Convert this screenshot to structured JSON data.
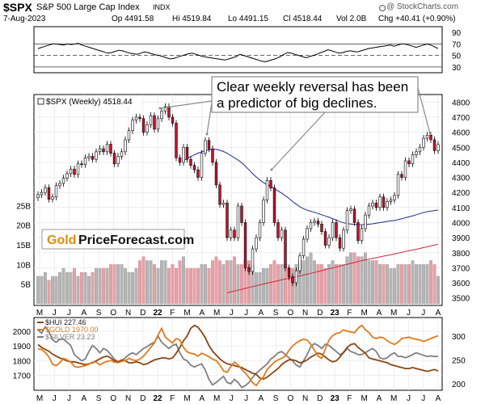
{
  "header": {
    "ticker": "$SPX",
    "name": "S&P 500 Large Cap Index",
    "exchange": "INDX",
    "date": "7-Aug-2023",
    "op": "Op 4491.58",
    "hi": "Hi 4519.84",
    "lo": "Lo 4491.15",
    "cl": "Cl 4518.44",
    "vol": "Vol 2.0B",
    "chg": "Chg +40.41 (+0.90%)",
    "watermark": "@ StockCharts.com"
  },
  "colors": {
    "up": "#ffffff",
    "down": "#c8102e",
    "ma_fast": "#1f2a8c",
    "ma_slow": "#d0263a",
    "hui": "#8b4513",
    "gold": "#e07a1a",
    "silver": "#7f7f7f",
    "volume_up": "#b5b5b5",
    "volume_down": "#e6a1a8"
  },
  "chart_data": [
    {
      "type": "line",
      "panel": "rsi",
      "y_ticks": [
        "90",
        "70",
        "50",
        "30"
      ],
      "ylim": [
        20,
        100
      ],
      "levels": [
        70,
        50,
        30
      ],
      "values": [
        62,
        64,
        66,
        68,
        70,
        70,
        69,
        68,
        70,
        69,
        70,
        71,
        68,
        66,
        64,
        62,
        60,
        58,
        56,
        54,
        55,
        57,
        59,
        58,
        56,
        54,
        53,
        52,
        54,
        56,
        55,
        53,
        51,
        50,
        48,
        46,
        44,
        45,
        47,
        49,
        51,
        53,
        54,
        52,
        50,
        48,
        47,
        46,
        45,
        44,
        43,
        42,
        44,
        46,
        48,
        52,
        50,
        48,
        46,
        44,
        42,
        40,
        39,
        41,
        43,
        45,
        48,
        52,
        55,
        54,
        52,
        50,
        48,
        46,
        48,
        50,
        52,
        55,
        57,
        60,
        58,
        56,
        54,
        55,
        57,
        58,
        57,
        56,
        58,
        60,
        62,
        63,
        64,
        65,
        66,
        67,
        68,
        66,
        68,
        70,
        70,
        68,
        66,
        64,
        66,
        68,
        70,
        68,
        65,
        62
      ]
    },
    {
      "type": "candlestick",
      "panel": "price",
      "title": "$SPX (Weekly) 4518.44",
      "ylim": [
        3450,
        4850
      ],
      "y_ticks": [
        "4800",
        "4700",
        "4600",
        "4500",
        "4400",
        "4300",
        "4200",
        "4100",
        "4000",
        "3900",
        "3800",
        "3700",
        "3600",
        "3500"
      ],
      "x_ticks": [
        "M",
        "J",
        "J",
        "A",
        "S",
        "O",
        "N",
        "D",
        "22",
        "F",
        "M",
        "A",
        "M",
        "J",
        "J",
        "A",
        "S",
        "O",
        "N",
        "D",
        "23",
        "F",
        "M",
        "A",
        "M",
        "J",
        "J",
        "A"
      ],
      "close": [
        4185,
        4200,
        4232,
        4155,
        4170,
        4245,
        4260,
        4295,
        4325,
        4355,
        4320,
        4390,
        4385,
        4430,
        4440,
        4420,
        4470,
        4490,
        4470,
        4520,
        4460,
        4390,
        4440,
        4470,
        4550,
        4610,
        4680,
        4700,
        4690,
        4600,
        4650,
        4710,
        4620,
        4690,
        4740,
        4770,
        4700,
        4660,
        4430,
        4400,
        4500,
        4420,
        4380,
        4350,
        4300,
        4460,
        4545,
        4490,
        4400,
        4250,
        4120,
        4130,
        3900,
        3950,
        3900,
        4110,
        4000,
        3700,
        3675,
        3825,
        3900,
        4000,
        4150,
        4280,
        4230,
        4000,
        3900,
        3950,
        3700,
        3640,
        3600,
        3680,
        3780,
        3890,
        3960,
        4000,
        4010,
        3990,
        3940,
        3850,
        3900,
        4000,
        3900,
        3830,
        3950,
        4080,
        4090,
        4000,
        3880,
        3960,
        4050,
        4110,
        4130,
        4100,
        4170,
        4100,
        4140,
        4150,
        4180,
        4320,
        4300,
        4410,
        4390,
        4450,
        4470,
        4500,
        4560,
        4580,
        4550,
        4478,
        4518
      ],
      "ma_fast": [
        null,
        null,
        null,
        null,
        null,
        null,
        null,
        null,
        null,
        null,
        null,
        null,
        null,
        null,
        null,
        null,
        null,
        null,
        null,
        null,
        null,
        null,
        null,
        null,
        null,
        null,
        null,
        null,
        null,
        null,
        null,
        null,
        null,
        null,
        null,
        null,
        null,
        null,
        null,
        null,
        4410,
        4425,
        4438,
        4450,
        4461,
        4470,
        4478,
        4483,
        4487,
        4486,
        4480,
        4472,
        4460,
        4445,
        4430,
        4415,
        4398,
        4375,
        4350,
        4325,
        4303,
        4283,
        4266,
        4252,
        4240,
        4225,
        4210,
        4195,
        4178,
        4160,
        4140,
        4122,
        4105,
        4092,
        4082,
        4075,
        4068,
        4060,
        4052,
        4044,
        4035,
        4026,
        4016,
        4006,
        3999,
        3994,
        3990,
        3988,
        3986,
        3985,
        3987,
        3989,
        3992,
        3996,
        4000,
        4004,
        4008,
        4011,
        4014,
        4020,
        4025,
        4032,
        4038,
        4045,
        4052,
        4060,
        4066,
        4072,
        4076,
        4080,
        4083
      ],
      "ma_slow": [
        null,
        null,
        null,
        null,
        null,
        null,
        null,
        null,
        null,
        null,
        null,
        null,
        null,
        null,
        null,
        null,
        null,
        null,
        null,
        null,
        null,
        null,
        null,
        null,
        null,
        null,
        null,
        null,
        null,
        null,
        null,
        null,
        null,
        null,
        null,
        null,
        null,
        null,
        null,
        null,
        null,
        null,
        null,
        null,
        null,
        null,
        null,
        null,
        null,
        null,
        null,
        null,
        3535,
        3540,
        3545,
        3551,
        3557,
        3563,
        3569,
        3575,
        3580,
        3586,
        3592,
        3598,
        3603,
        3609,
        3614,
        3620,
        3625,
        3630,
        3635,
        3640,
        3646,
        3651,
        3657,
        3663,
        3669,
        3675,
        3681,
        3687,
        3693,
        3699,
        3705,
        3711,
        3717,
        3723,
        3729,
        3735,
        3741,
        3747,
        3752,
        3757,
        3762,
        3767,
        3772,
        3777,
        3782,
        3787,
        3792,
        3797,
        3802,
        3808,
        3813,
        3818,
        3823,
        3828,
        3834,
        3839,
        3845,
        3850,
        3856
      ],
      "volume": [
        7,
        7,
        8,
        6,
        7,
        7,
        8,
        9,
        8,
        8,
        9,
        7,
        8,
        8,
        7,
        8,
        9,
        9,
        9,
        9,
        10,
        10,
        10,
        10,
        9,
        8,
        8,
        9,
        11,
        12,
        11,
        11,
        10,
        9,
        11,
        11,
        9,
        10,
        9,
        11,
        12,
        9,
        9,
        9,
        9,
        10,
        10,
        9,
        11,
        12,
        11,
        10,
        11,
        11,
        12,
        10,
        10,
        11,
        11,
        10,
        8,
        8,
        9,
        9,
        10,
        11,
        10,
        10,
        10,
        9,
        9,
        10,
        11,
        11,
        12,
        13,
        11,
        10,
        10,
        9,
        10,
        11,
        10,
        10,
        10,
        12,
        13,
        13,
        12,
        12,
        13,
        11,
        11,
        11,
        10,
        10,
        10,
        9,
        9,
        10,
        10,
        10,
        10,
        11,
        10,
        10,
        10,
        10,
        11,
        10,
        7
      ],
      "volume_ticks": [
        "25B",
        "20B",
        "15B",
        "10B",
        "5B"
      ],
      "legend": [
        "Gold",
        "PriceForecast.com"
      ],
      "annotation": [
        "Clear weekly reversal  has been",
        "a predictor of big declines."
      ]
    },
    {
      "type": "line",
      "panel": "metals",
      "series": [
        {
          "name": "$HUI 227.46",
          "values": [
            282,
            276,
            272,
            268,
            262,
            258,
            254,
            251,
            248,
            246,
            246,
            244,
            242,
            240,
            242,
            244,
            248,
            252,
            256,
            258,
            254,
            248,
            246,
            250,
            248,
            244,
            244,
            246,
            244,
            240,
            242,
            246,
            250,
            252,
            254,
            254,
            252,
            254,
            264,
            276,
            290,
            300,
            316,
            322,
            318,
            308,
            296,
            280,
            268,
            260,
            252,
            246,
            242,
            240,
            238,
            236,
            234,
            230,
            226,
            222,
            220,
            212,
            210,
            214,
            220,
            226,
            232,
            240,
            246,
            250,
            250,
            248,
            244,
            246,
            250,
            256,
            260,
            264,
            262,
            256,
            250,
            246,
            248,
            256,
            266,
            276,
            282,
            284,
            276,
            270,
            264,
            254,
            252,
            250,
            248,
            246,
            244,
            240,
            238,
            236,
            234,
            232,
            232,
            234,
            232,
            230,
            228,
            226,
            228,
            230,
            227
          ]
        },
        {
          "name": "$GOLD 1970.00",
          "values": [
            1880,
            1875,
            1855,
            1825,
            1775,
            1765,
            1785,
            1815,
            1805,
            1790,
            1760,
            1755,
            1760,
            1765,
            1775,
            1790,
            1790,
            1770,
            1785,
            1795,
            1800,
            1790,
            1785,
            1795,
            1800,
            1815,
            1805,
            1800,
            1810,
            1830,
            1860,
            1890,
            1920,
            1975,
            2020,
            1960,
            1940,
            1920,
            1950,
            1940,
            1890,
            1860,
            1850,
            1845,
            1830,
            1850,
            1840,
            1825,
            1810,
            1800,
            1770,
            1730,
            1720,
            1760,
            1790,
            1770,
            1740,
            1715,
            1685,
            1650,
            1630,
            1665,
            1690,
            1740,
            1765,
            1790,
            1805,
            1815,
            1830,
            1870,
            1900,
            1920,
            1935,
            1945,
            1940,
            1910,
            1870,
            1830,
            1815,
            1880,
            1940,
            1970,
            1985,
            1990,
            2010,
            2000,
            1995,
            1990,
            2020,
            2040,
            2010,
            1990,
            1960,
            1950,
            1960,
            1955,
            1935,
            1920,
            1910,
            1925,
            1950,
            1955,
            1960,
            1950,
            1945,
            1940,
            1930,
            1940,
            1950,
            1960,
            1970
          ]
        },
        {
          "name": "$SILVER 23.23",
          "values": [
            27.5,
            27.0,
            28.0,
            27.2,
            25.9,
            25.5,
            26.0,
            26.0,
            25.5,
            25.0,
            23.5,
            23.0,
            22.5,
            22.8,
            24.0,
            25.0,
            24.5,
            23.8,
            24.5,
            24.2,
            23.5,
            22.8,
            22.3,
            22.5,
            23.0,
            23.5,
            23.8,
            23.5,
            24.0,
            24.5,
            24.8,
            25.2,
            25.5,
            26.5,
            25.5,
            25.0,
            24.5,
            25.0,
            25.2,
            23.8,
            22.8,
            22.5,
            21.8,
            21.5,
            21.8,
            22.0,
            21.0,
            19.5,
            18.6,
            19.0,
            19.5,
            20.0,
            19.0,
            18.8,
            19.5,
            19.0,
            18.2,
            18.5,
            19.0,
            19.8,
            20.5,
            21.0,
            21.5,
            22.0,
            22.8,
            23.2,
            23.8,
            24.0,
            23.5,
            23.0,
            22.5,
            21.8,
            21.5,
            22.5,
            23.5,
            24.8,
            25.3,
            25.0,
            24.5,
            25.2,
            25.0,
            24.5,
            24.0,
            23.5,
            23.8,
            24.5,
            24.0,
            23.8,
            23.5,
            23.5,
            23.8,
            24.2,
            24.5,
            24.0,
            23.0,
            22.8,
            23.0,
            23.5,
            23.8,
            23.2,
            23.23,
            23.0,
            23.23,
            23.5,
            23.8,
            23.6,
            23.4,
            23.2,
            23.3,
            23.2,
            23.23
          ]
        }
      ],
      "left_ticks": [
        "2000",
        "1900",
        "1800",
        "1700"
      ],
      "right_ticks": [
        "300",
        "250",
        "200"
      ],
      "x_ticks": [
        "M",
        "J",
        "J",
        "A",
        "S",
        "O",
        "N",
        "D",
        "22",
        "F",
        "M",
        "A",
        "M",
        "J",
        "J",
        "A",
        "S",
        "O",
        "N",
        "D",
        "23",
        "F",
        "M",
        "A",
        "M",
        "J",
        "J",
        "A"
      ]
    }
  ]
}
